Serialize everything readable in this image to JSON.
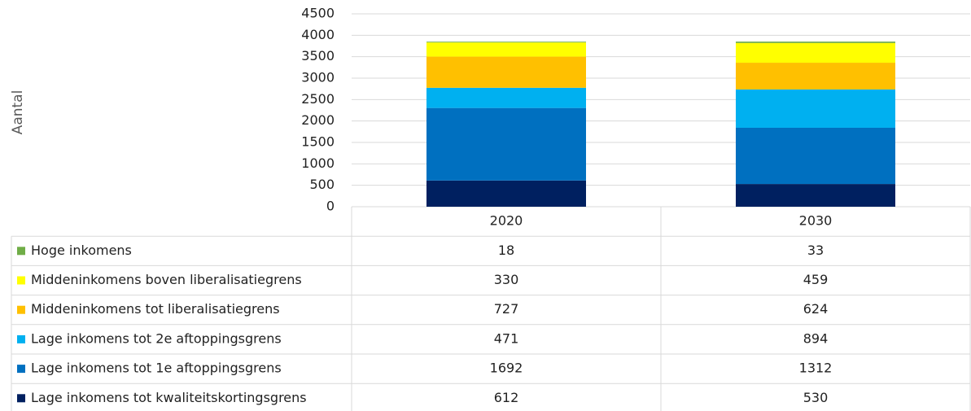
{
  "chart_data": {
    "type": "stacked_bar",
    "y_axis_label": "Aantal",
    "categories": [
      "2020",
      "2030"
    ],
    "series": [
      {
        "name": "Hoge inkomens",
        "color": "#70ad47",
        "values": [
          18,
          33
        ]
      },
      {
        "name": "Middeninkomens boven liberalisatiegrens",
        "color": "#ffff00",
        "values": [
          330,
          459
        ]
      },
      {
        "name": "Middeninkomens tot liberalisatiegrens",
        "color": "#ffc000",
        "values": [
          727,
          624
        ]
      },
      {
        "name": "Lage inkomens tot 2e aftoppingsgrens",
        "color": "#00b0f0",
        "values": [
          471,
          894
        ]
      },
      {
        "name": "Lage inkomens tot 1e aftoppingsgrens",
        "color": "#0070c0",
        "values": [
          1692,
          1312
        ]
      },
      {
        "name": "Lage inkomens tot kwaliteitskortingsgrens",
        "color": "#002060",
        "values": [
          612,
          530
        ]
      }
    ],
    "ylim": [
      0,
      4500
    ],
    "yticks": [
      0,
      500,
      1000,
      1500,
      2000,
      2500,
      3000,
      3500,
      4000,
      4500
    ],
    "grid": true
  }
}
